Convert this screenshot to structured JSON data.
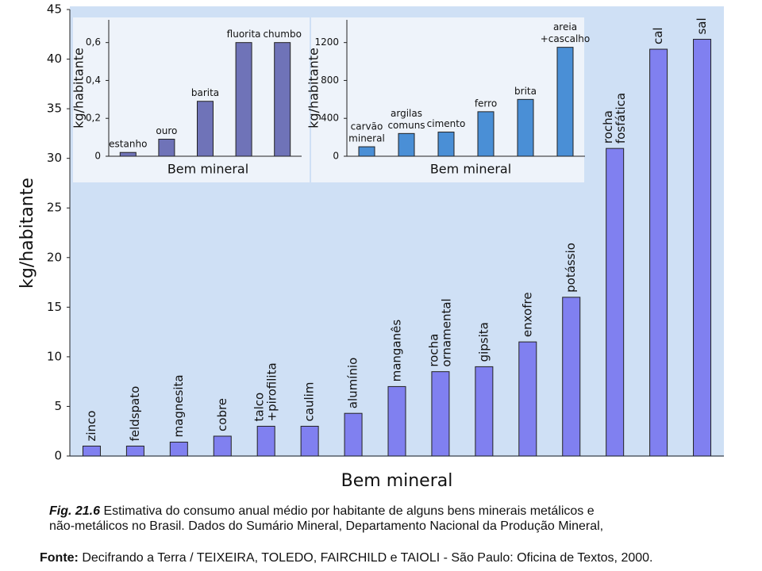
{
  "chart_data": [
    {
      "type": "bar",
      "ylabel": "kg/habitante",
      "xlabel": "Bem mineral",
      "color": "#8080f0",
      "categories": [
        "zinco",
        "feldspato",
        "magnesita",
        "cobre",
        [
          "talco",
          "+pirofilita"
        ],
        "caulim",
        "alumínio",
        "manganês",
        [
          "rocha",
          "ornamental"
        ],
        "gipsita",
        "enxofre",
        "potássio",
        [
          "rocha",
          "fosfática"
        ],
        "cal",
        "sal"
      ],
      "values": [
        1,
        1,
        1.4,
        2,
        3,
        3,
        4.3,
        7,
        8.5,
        9,
        11.5,
        16,
        31,
        41,
        42
      ],
      "ylim": [
        0,
        45
      ],
      "yticks": [
        0,
        5,
        10,
        15,
        20,
        25,
        30,
        35,
        40,
        45
      ]
    },
    {
      "type": "bar",
      "ylabel": "kg/habitante",
      "xlabel": "Bem mineral",
      "color": "#6f73b8",
      "categories": [
        "estanho",
        "ouro",
        "barita",
        "fluorita",
        "chumbo"
      ],
      "values": [
        0.02,
        0.09,
        0.29,
        0.6,
        0.6
      ],
      "ylim": [
        0,
        0.72
      ],
      "yticks": [
        0,
        {
          "value": 0.2,
          "label": "0,2"
        },
        {
          "value": 0.4,
          "label": "0,4"
        },
        {
          "value": 0.6,
          "label": "0,6"
        }
      ]
    },
    {
      "type": "bar",
      "ylabel": "kg/habitante",
      "xlabel": "Bem mineral",
      "color": "#4a8fd6",
      "categories": [
        [
          "carvão",
          "mineral"
        ],
        [
          "argilas",
          "comuns"
        ],
        "cimento",
        "ferro",
        "brita",
        [
          "areia",
          "+cascalho"
        ]
      ],
      "values": [
        100,
        240,
        255,
        470,
        600,
        1150
      ],
      "ylim": [
        0,
        1440
      ],
      "yticks": [
        0,
        400,
        800,
        1200
      ]
    }
  ],
  "caption": {
    "figure": "Fig. 21.6",
    "lines": [
      "Estimativa do consumo anual médio por habitante de alguns bens minerais metálicos e",
      "não-metálicos no Brasil. Dados do Sumário Mineral, Departamento Nacional da Produção Mineral,"
    ]
  },
  "source": {
    "label": "Fonte:",
    "text": "Decifrando a Terra / TEIXEIRA, TOLEDO, FAIRCHILD e TAIOLI  - São Paulo: Oficina de Textos, 2000."
  }
}
